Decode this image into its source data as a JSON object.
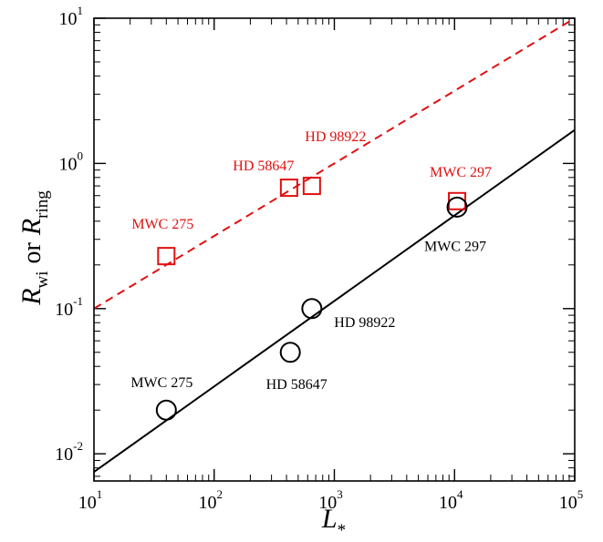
{
  "chart_data": {
    "type": "scatter",
    "title": "",
    "xlabel": {
      "main": "L",
      "sub": "*"
    },
    "ylabel": {
      "part1": "R",
      "part1_sub": "wi",
      "connector": "or",
      "part2": "R",
      "part2_sub": "ring"
    },
    "xscale": "log",
    "yscale": "log",
    "xlim": [
      10,
      100000
    ],
    "ylim": [
      0.0065,
      10
    ],
    "grid": false,
    "legend": "none",
    "xticks": [
      {
        "value": 10,
        "base": "10",
        "exp": "1"
      },
      {
        "value": 100,
        "base": "10",
        "exp": "2"
      },
      {
        "value": 1000,
        "base": "10",
        "exp": "3"
      },
      {
        "value": 10000,
        "base": "10",
        "exp": "4"
      },
      {
        "value": 100000,
        "base": "10",
        "exp": "5"
      }
    ],
    "yticks": [
      {
        "value": 0.01,
        "base": "10",
        "exp": "-2"
      },
      {
        "value": 0.1,
        "base": "10",
        "exp": "-1"
      },
      {
        "value": 1,
        "base": "10",
        "exp": "0"
      },
      {
        "value": 10,
        "base": "10",
        "exp": "1"
      }
    ],
    "series": [
      {
        "marker": "square",
        "color": "#e01010",
        "points": [
          {
            "label": "MWC 275",
            "x": 40,
            "y": 0.23
          },
          {
            "label": "HD 58647",
            "x": 420,
            "y": 0.68
          },
          {
            "label": "HD 98922",
            "x": 650,
            "y": 0.7
          },
          {
            "label": "MWC 297",
            "x": 10500,
            "y": 0.55
          }
        ],
        "fit_line": {
          "style": "dashed",
          "from": [
            10,
            0.1
          ],
          "to": [
            100000,
            10
          ]
        }
      },
      {
        "marker": "circle",
        "color": "#000000",
        "points": [
          {
            "label": "MWC 275",
            "x": 40,
            "y": 0.02
          },
          {
            "label": "HD 58647",
            "x": 430,
            "y": 0.05
          },
          {
            "label": "HD 98922",
            "x": 650,
            "y": 0.1
          },
          {
            "label": "MWC 297",
            "x": 10500,
            "y": 0.5
          }
        ],
        "fit_line": {
          "style": "solid",
          "from": [
            10,
            0.0075
          ],
          "to": [
            100000,
            1.7
          ]
        }
      }
    ]
  }
}
